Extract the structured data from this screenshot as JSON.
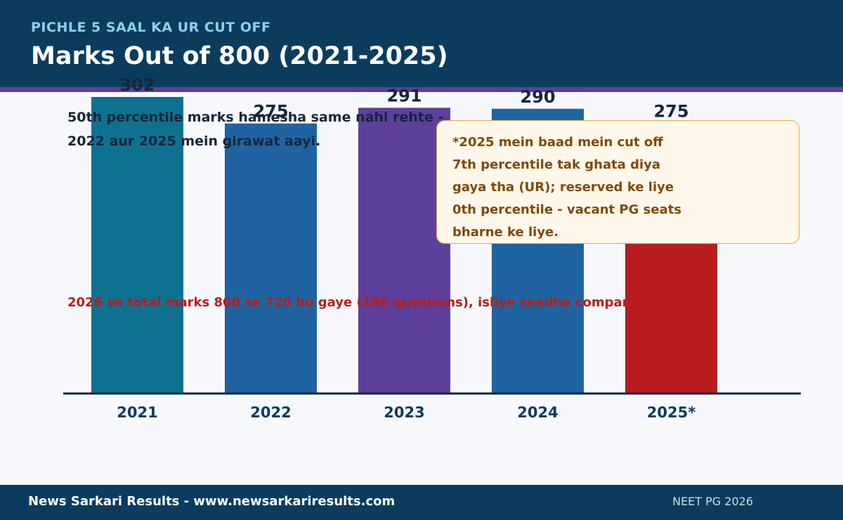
{
  "header": {
    "kicker": "PICHLE 5 SAAL KA UR CUT OFF",
    "title": "Marks Out of 800 (2021-2025)"
  },
  "chart_data": {
    "type": "bar",
    "categories": [
      "2021",
      "2022",
      "2023",
      "2024",
      "2025*"
    ],
    "values": [
      302,
      275,
      291,
      290,
      275
    ],
    "value_labels": [
      "302",
      "275",
      "291",
      "290",
      "275"
    ],
    "colors": [
      "#0f7190",
      "#1f64a0",
      "#5e3f9b",
      "#1f64a0",
      "#b91c1c"
    ],
    "ylim": [
      0,
      302
    ],
    "grid": false,
    "axis_color": "#16263a"
  },
  "annotations": {
    "note_line1": "50th percentile marks hamesha same nahi rehte -",
    "note_line2": "2022 aur 2025 mein girawat aayi.",
    "callout_lines": [
      "*2025 mein baad mein cut off",
      "7th percentile tak ghata diya",
      "gaya tha (UR); reserved ke liye",
      "0th percentile - vacant PG seats",
      "bharne ke liye."
    ],
    "warning": "2026 se total marks 800 se 720 ho gaye (180 questions), isliye seedha compare na karein."
  },
  "footer": {
    "left": "News Sarkari Results  -  www.newsarkariresults.com",
    "right": "NEET PG 2026"
  }
}
